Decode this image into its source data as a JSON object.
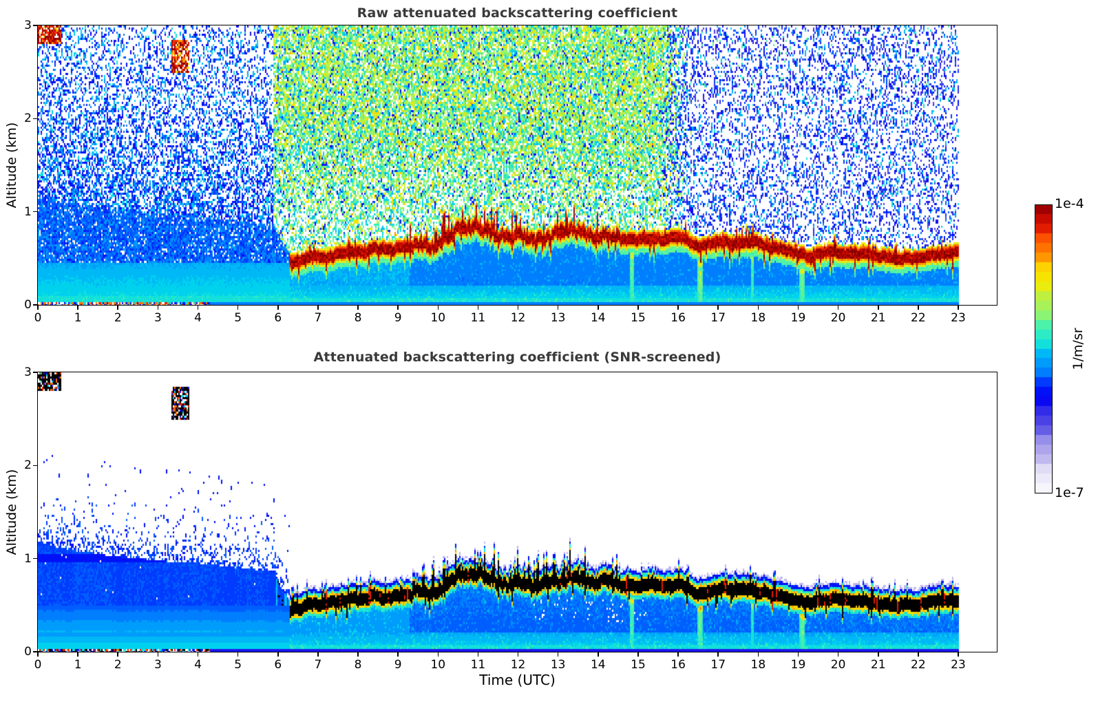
{
  "figure": {
    "background": "#ffffff",
    "title_color": "#3a3a3a",
    "text_color": "#000000"
  },
  "chart_data": {
    "type": "heatmap",
    "panels": [
      {
        "title": "Raw attenuated backscattering coefficient",
        "screened": false
      },
      {
        "title": "Attenuated backscattering coefficient (SNR-screened)",
        "screened": true
      }
    ],
    "x": {
      "label": "Time (UTC)",
      "unit": "hours",
      "range": [
        0,
        23
      ],
      "ticks": [
        0,
        1,
        2,
        3,
        4,
        5,
        6,
        7,
        8,
        9,
        10,
        11,
        12,
        13,
        14,
        15,
        16,
        17,
        18,
        19,
        20,
        21,
        22,
        23
      ]
    },
    "y": {
      "label": "Altitude (km)",
      "unit": "km",
      "range": [
        0,
        3
      ],
      "ticks": [
        3,
        2,
        1,
        0
      ]
    },
    "colormap": {
      "scale": "log",
      "min": 1e-07,
      "max": 0.0001,
      "unit": "1/m/sr",
      "max_label": "1e-4",
      "min_label": "1e-7",
      "bands": 30,
      "stops": [
        [
          0.0,
          "#ffffff"
        ],
        [
          0.05,
          "#eceaf9"
        ],
        [
          0.1,
          "#d3cdf2"
        ],
        [
          0.15,
          "#ada4ec"
        ],
        [
          0.2,
          "#7f77e7"
        ],
        [
          0.25,
          "#4a42e4"
        ],
        [
          0.3,
          "#1b16ee"
        ],
        [
          0.34,
          "#0000f5"
        ],
        [
          0.38,
          "#0044ff"
        ],
        [
          0.42,
          "#0078ff"
        ],
        [
          0.46,
          "#00a8fa"
        ],
        [
          0.5,
          "#00d2ee"
        ],
        [
          0.54,
          "#1fe9d0"
        ],
        [
          0.58,
          "#52f2a4"
        ],
        [
          0.62,
          "#86f579"
        ],
        [
          0.66,
          "#b2f04e"
        ],
        [
          0.7,
          "#d8ef26"
        ],
        [
          0.74,
          "#f4ea00"
        ],
        [
          0.78,
          "#ffcf00"
        ],
        [
          0.82,
          "#ff9d00"
        ],
        [
          0.86,
          "#ff6400"
        ],
        [
          0.9,
          "#f53000"
        ],
        [
          0.94,
          "#d61000"
        ],
        [
          0.97,
          "#a80000"
        ],
        [
          1.0,
          "#7a0000"
        ]
      ]
    },
    "features": {
      "seed": 20240601,
      "day_start_utc": 5.9,
      "layer_start_utc": 6.28,
      "surface_speckle_end_utc": 4.3,
      "noise_fade_utc": [
        15.5,
        16.35
      ],
      "spiky_interval_utc": [
        9.3,
        14.6
      ],
      "clouds": [
        {
          "t_range": [
            0,
            0.6
          ],
          "z_range": [
            2.8,
            3.0
          ]
        },
        {
          "t_range": [
            3.35,
            3.78
          ],
          "z_range": [
            2.48,
            2.84
          ]
        }
      ],
      "nocturnal_layer_top_km": [
        [
          0,
          1.18
        ],
        [
          0.5,
          1.12
        ],
        [
          1,
          1.08
        ],
        [
          1.5,
          1.05
        ],
        [
          2,
          1.02
        ],
        [
          2.5,
          1.0
        ],
        [
          3,
          0.98
        ],
        [
          3.5,
          0.96
        ],
        [
          4,
          0.95
        ],
        [
          4.5,
          0.93
        ],
        [
          5,
          0.9
        ],
        [
          5.5,
          0.88
        ],
        [
          5.9,
          0.85
        ],
        [
          6.1,
          0.68
        ],
        [
          6.28,
          0.55
        ]
      ],
      "aerosol_layer_center_km": [
        [
          6.3,
          0.45
        ],
        [
          6.6,
          0.48
        ],
        [
          6.9,
          0.52
        ],
        [
          7.2,
          0.5
        ],
        [
          7.5,
          0.55
        ],
        [
          7.8,
          0.57
        ],
        [
          8.1,
          0.55
        ],
        [
          8.4,
          0.6
        ],
        [
          8.7,
          0.58
        ],
        [
          9.0,
          0.6
        ],
        [
          9.3,
          0.62
        ],
        [
          9.6,
          0.66
        ],
        [
          9.9,
          0.63
        ],
        [
          10.2,
          0.73
        ],
        [
          10.5,
          0.82
        ],
        [
          10.8,
          0.8
        ],
        [
          11.1,
          0.82
        ],
        [
          11.4,
          0.76
        ],
        [
          11.7,
          0.72
        ],
        [
          12.0,
          0.76
        ],
        [
          12.3,
          0.72
        ],
        [
          12.6,
          0.7
        ],
        [
          12.9,
          0.74
        ],
        [
          13.2,
          0.78
        ],
        [
          13.5,
          0.8
        ],
        [
          13.8,
          0.76
        ],
        [
          14.1,
          0.74
        ],
        [
          14.4,
          0.72
        ],
        [
          14.7,
          0.7
        ],
        [
          15.0,
          0.7
        ],
        [
          15.3,
          0.72
        ],
        [
          15.6,
          0.7
        ],
        [
          15.9,
          0.72
        ],
        [
          16.2,
          0.7
        ],
        [
          16.5,
          0.62
        ],
        [
          16.8,
          0.65
        ],
        [
          17.1,
          0.68
        ],
        [
          17.4,
          0.66
        ],
        [
          17.7,
          0.66
        ],
        [
          18.0,
          0.66
        ],
        [
          18.3,
          0.62
        ],
        [
          18.6,
          0.6
        ],
        [
          18.9,
          0.56
        ],
        [
          19.2,
          0.52
        ],
        [
          19.5,
          0.55
        ],
        [
          19.8,
          0.56
        ],
        [
          20.1,
          0.56
        ],
        [
          20.4,
          0.55
        ],
        [
          20.7,
          0.54
        ],
        [
          21.0,
          0.52
        ],
        [
          21.3,
          0.5
        ],
        [
          21.6,
          0.5
        ],
        [
          21.9,
          0.5
        ],
        [
          22.2,
          0.52
        ],
        [
          22.5,
          0.55
        ],
        [
          22.8,
          0.55
        ],
        [
          23,
          0.55
        ]
      ],
      "layer_core_half_width_km": 0.05,
      "virga_streaks": [
        {
          "t_utc": 14.85,
          "strength": 0.8,
          "width_h": 0.06
        },
        {
          "t_utc": 16.55,
          "strength": 1.0,
          "width_h": 0.07
        },
        {
          "t_utc": 17.85,
          "strength": 0.5,
          "width_h": 0.05
        },
        {
          "t_utc": 19.1,
          "strength": 0.9,
          "width_h": 0.07
        }
      ],
      "white_holes": {
        "t_range": [
          12.3,
          15.2
        ],
        "z_range": [
          0.32,
          0.58
        ]
      }
    }
  }
}
